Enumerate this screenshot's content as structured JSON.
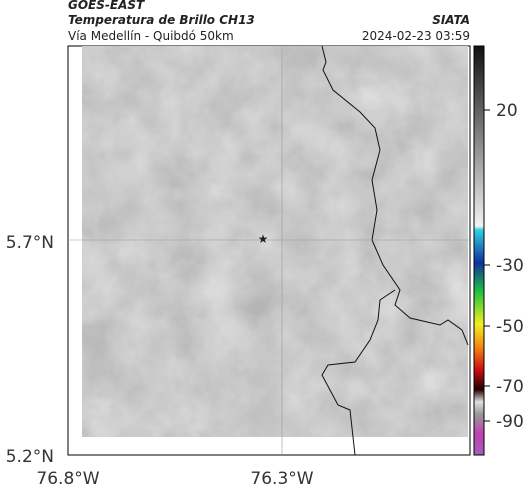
{
  "header": {
    "source": "GOES-EAST",
    "product": "Temperatura de Brillo CH13",
    "region": "Vía Medellín - Quibdó 50km",
    "agency": "SIATA",
    "timestamp": "2024-02-23 03:59"
  },
  "map": {
    "lat_labels": [
      "5.7°N",
      "5.2°N"
    ],
    "lon_labels": [
      "76.8°W",
      "76.3°W"
    ]
  },
  "colorbar": {
    "labels": [
      "20",
      "-30",
      "-50",
      "-70",
      "-90"
    ]
  }
}
